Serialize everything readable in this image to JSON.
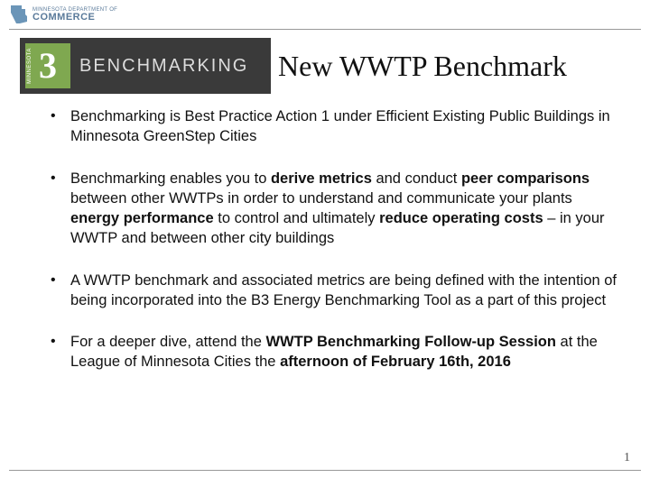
{
  "header": {
    "dept_line": "MINNESOTA DEPARTMENT OF",
    "commerce": "COMMERCE",
    "mn_fill": "#6b95b8"
  },
  "badge": {
    "bg": "#3a3a3a",
    "square_bg": "#7fa850",
    "numeral": "3",
    "mn_vert": "MINNESOTA",
    "label": "BENCHMARKING",
    "label_color": "#dcdcdc"
  },
  "title": "New WWTP Benchmark",
  "bullets": [
    {
      "runs": [
        {
          "t": "Benchmarking is Best Practice Action 1 under Efficient Existing Public Buildings in Minnesota GreenStep Cities",
          "b": false
        }
      ]
    },
    {
      "runs": [
        {
          "t": "Benchmarking enables you to ",
          "b": false
        },
        {
          "t": "derive metrics",
          "b": true
        },
        {
          "t": " and conduct ",
          "b": false
        },
        {
          "t": "peer comparisons",
          "b": true
        },
        {
          "t": " between other WWTPs in order to understand and communicate your plants ",
          "b": false
        },
        {
          "t": "energy performance",
          "b": true
        },
        {
          "t": " to control and ultimately ",
          "b": false
        },
        {
          "t": "reduce operating costs",
          "b": true
        },
        {
          "t": " – in your WWTP and between other city buildings",
          "b": false
        }
      ]
    },
    {
      "runs": [
        {
          "t": "A WWTP benchmark and associated metrics are being defined with the intention of being incorporated into the B3 Energy Benchmarking Tool as a part of this project",
          "b": false
        }
      ]
    },
    {
      "runs": [
        {
          "t": "For a deeper dive, attend the ",
          "b": false
        },
        {
          "t": "WWTP Benchmarking Follow-up Session",
          "b": true
        },
        {
          "t": " at the League of Minnesota Cities the ",
          "b": false
        },
        {
          "t": "afternoon of February 16th, 2016",
          "b": true
        }
      ]
    }
  ],
  "page_number": "1",
  "colors": {
    "rule": "#999999",
    "text": "#111111",
    "bg": "#ffffff"
  }
}
